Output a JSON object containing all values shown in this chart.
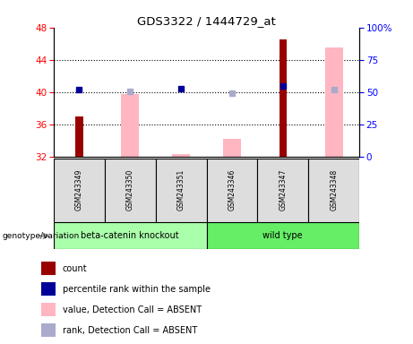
{
  "title": "GDS3322 / 1444729_at",
  "samples": [
    "GSM243349",
    "GSM243350",
    "GSM243351",
    "GSM243346",
    "GSM243347",
    "GSM243348"
  ],
  "ylim_left": [
    32,
    48
  ],
  "ylim_right": [
    0,
    100
  ],
  "yticks_left": [
    32,
    36,
    40,
    44,
    48
  ],
  "yticks_right": [
    0,
    25,
    50,
    75,
    100
  ],
  "yticklabels_right": [
    "0",
    "25",
    "50",
    "75",
    "100%"
  ],
  "red_bars": [
    37.0,
    null,
    null,
    null,
    46.5,
    null
  ],
  "pink_bars": [
    null,
    39.8,
    32.3,
    34.2,
    null,
    45.5
  ],
  "blue_squares": [
    40.3,
    null,
    40.4,
    null,
    40.7,
    null
  ],
  "lightblue_squares": [
    null,
    40.1,
    null,
    39.9,
    null,
    40.3
  ],
  "red_color": "#990000",
  "pink_color": "#FFB6C1",
  "blue_color": "#000099",
  "lightblue_color": "#AAAACC",
  "legend_labels": [
    "count",
    "percentile rank within the sample",
    "value, Detection Call = ABSENT",
    "rank, Detection Call = ABSENT"
  ],
  "legend_colors": [
    "#990000",
    "#000099",
    "#FFB6C1",
    "#AAAACC"
  ],
  "genotype_label": "genotype/variation",
  "group_names": [
    "beta-catenin knockout",
    "wild type"
  ],
  "group_colors": [
    "#AAFFAA",
    "#66EE66"
  ],
  "sample_box_color": "#DDDDDD",
  "grid_ticks": [
    36,
    40,
    44
  ]
}
